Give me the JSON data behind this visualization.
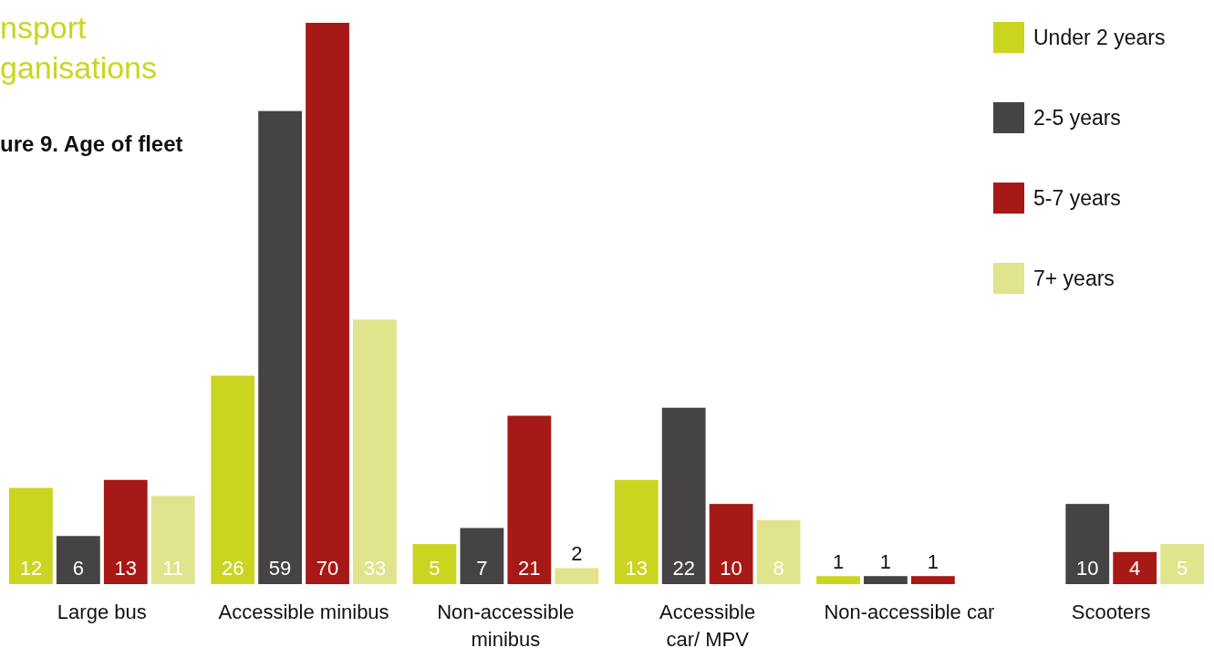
{
  "chart_data": {
    "type": "bar",
    "title": "ure 9. Age of fleet",
    "annotations": [
      "nsport",
      "ganisations"
    ],
    "categories": [
      "Large bus",
      "Accessible minibus",
      "Non-accessible minibus",
      "Accessible car/ MPV",
      "Non-accessible car",
      "Scooters"
    ],
    "series": [
      {
        "name": "Under 2 years",
        "color": "#cad520",
        "values": [
          12,
          26,
          5,
          13,
          1,
          null
        ]
      },
      {
        "name": "2-5 years",
        "color": "#454344",
        "values": [
          6,
          59,
          7,
          22,
          1,
          10
        ]
      },
      {
        "name": "5-7 years",
        "color": "#a71916",
        "values": [
          13,
          70,
          21,
          10,
          1,
          4
        ]
      },
      {
        "name": "7+ years",
        "color": "#e0e48c",
        "values": [
          11,
          33,
          2,
          8,
          null,
          5
        ]
      }
    ],
    "data_labels": true,
    "legend": "top right",
    "grid": false
  }
}
